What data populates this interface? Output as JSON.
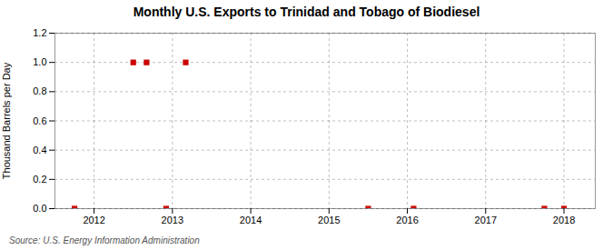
{
  "chart_data": {
    "type": "scatter",
    "title": "Monthly U.S. Exports to Trinidad and Tobago of Biodiesel",
    "ylabel": "Thousand Barrels per Day",
    "source": "Source: U.S. Energy Information Administration",
    "x": [
      2011.75,
      2012.5,
      2012.67,
      2012.92,
      2013.17,
      2015.5,
      2016.08,
      2017.75,
      2018.0
    ],
    "values": [
      0.0,
      1.0,
      1.0,
      0.0,
      1.0,
      0.0,
      0.0,
      0.0,
      0.0
    ],
    "color": "#cc0000",
    "marker": "square",
    "xlim": [
      2011.5,
      2018.4
    ],
    "ylim": [
      0.0,
      1.2
    ],
    "xticks": [
      2012,
      2013,
      2014,
      2015,
      2016,
      2017,
      2018
    ],
    "yticks": [
      {
        "value": 0.0,
        "label": "0.0"
      },
      0.2,
      0.4,
      0.6,
      0.8,
      {
        "value": 1.0,
        "label": "1.0"
      },
      1.2
    ],
    "grid": true
  }
}
